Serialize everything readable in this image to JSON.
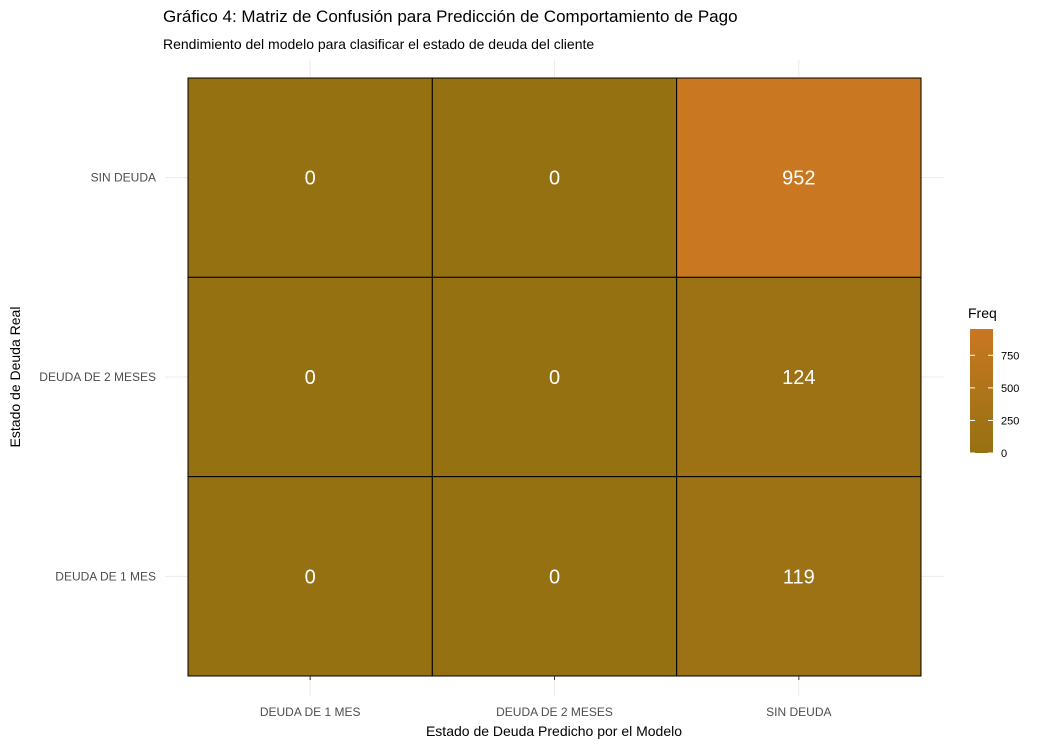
{
  "chart_data": {
    "type": "heatmap",
    "title": "Gráfico 4: Matriz de Confusión para Predicción de Comportamiento de Pago",
    "subtitle": "Rendimiento del modelo para clasificar el estado de deuda del cliente",
    "xlabel": "Estado de Deuda Predicho por el Modelo",
    "ylabel": "Estado de Deuda Real",
    "x_categories": [
      "DEUDA DE 1 MES",
      "DEUDA DE 2 MESES",
      "SIN DEUDA"
    ],
    "y_categories": [
      "DEUDA DE 1 MES",
      "DEUDA DE 2 MESES",
      "SIN DEUDA"
    ],
    "cells": [
      {
        "x": "DEUDA DE 1 MES",
        "y": "SIN DEUDA",
        "value": 0
      },
      {
        "x": "DEUDA DE 2 MESES",
        "y": "SIN DEUDA",
        "value": 0
      },
      {
        "x": "SIN DEUDA",
        "y": "SIN DEUDA",
        "value": 952
      },
      {
        "x": "DEUDA DE 1 MES",
        "y": "DEUDA DE 2 MESES",
        "value": 0
      },
      {
        "x": "DEUDA DE 2 MESES",
        "y": "DEUDA DE 2 MESES",
        "value": 0
      },
      {
        "x": "SIN DEUDA",
        "y": "DEUDA DE 2 MESES",
        "value": 124
      },
      {
        "x": "DEUDA DE 1 MES",
        "y": "DEUDA DE 1 MES",
        "value": 0
      },
      {
        "x": "DEUDA DE 2 MESES",
        "y": "DEUDA DE 1 MES",
        "value": 0
      },
      {
        "x": "SIN DEUDA",
        "y": "DEUDA DE 1 MES",
        "value": 119
      }
    ],
    "legend": {
      "title": "Freq",
      "position": "right",
      "ticks": [
        0,
        250,
        500,
        750
      ],
      "range": [
        0,
        952
      ]
    },
    "color_low": "#967112",
    "color_high": "#c97721",
    "label_color": "#ffffff",
    "grid": true
  }
}
